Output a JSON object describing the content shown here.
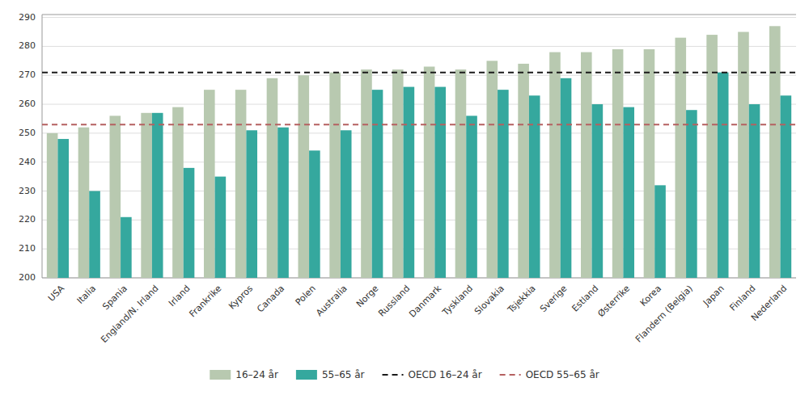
{
  "chart_data": {
    "type": "bar",
    "categories": [
      "USA",
      "Italia",
      "Spania",
      "England/N. Irland",
      "Irland",
      "Frankrike",
      "Kypros",
      "Canada",
      "Polen",
      "Australia",
      "Norge",
      "Russland",
      "Danmark",
      "Tyskland",
      "Slovakia",
      "Tsjekkia",
      "Sverige",
      "Estland",
      "Østerrike",
      "Korea",
      "Flandern (Belgia)",
      "Japan",
      "Finland",
      "Nederland"
    ],
    "series": [
      {
        "name": "16–24 år",
        "color": "#b8c9b0",
        "values": [
          250,
          252,
          256,
          257,
          259,
          265,
          265,
          269,
          270,
          271,
          272,
          272,
          273,
          272,
          275,
          274,
          278,
          278,
          279,
          279,
          283,
          284,
          285,
          287
        ]
      },
      {
        "name": "55–65 år",
        "color": "#35a89e",
        "values": [
          248,
          230,
          221,
          257,
          238,
          235,
          251,
          252,
          244,
          251,
          265,
          266,
          266,
          256,
          265,
          263,
          269,
          260,
          259,
          232,
          258,
          271,
          260,
          263
        ]
      }
    ],
    "reference_lines": [
      {
        "name": "OECD 16–24 år",
        "value": 271,
        "color": "#1a1a1a",
        "line_style": "dashed"
      },
      {
        "name": "OECD 55–65 år",
        "value": 253,
        "color": "#b56060",
        "line_style": "dashed"
      }
    ],
    "ylim": [
      200,
      291
    ],
    "yticks": [
      200,
      210,
      220,
      230,
      240,
      250,
      260,
      270,
      280,
      290
    ],
    "grid": true,
    "legend": "bottom"
  }
}
